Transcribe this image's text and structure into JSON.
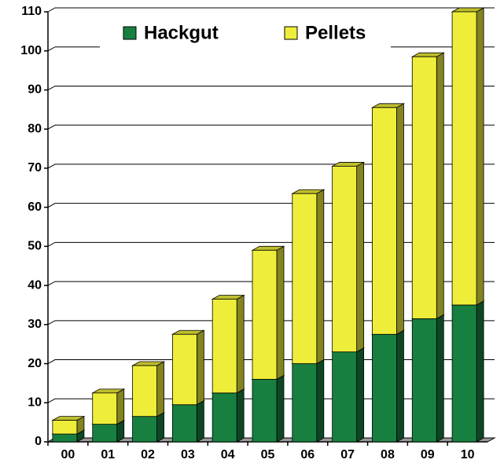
{
  "chart_data": {
    "type": "bar",
    "stacked": true,
    "categories": [
      "00",
      "01",
      "02",
      "03",
      "04",
      "05",
      "06",
      "07",
      "08",
      "09",
      "10"
    ],
    "series": [
      {
        "name": "Hackgut",
        "color": "#178040",
        "values": [
          2,
          4.5,
          6.5,
          9.5,
          12.5,
          16,
          20,
          23,
          27.5,
          31.5,
          35
        ]
      },
      {
        "name": "Pellets",
        "color": "#eeee3a",
        "values": [
          3.5,
          8,
          13,
          18,
          24,
          33,
          43.5,
          47.5,
          58,
          67,
          75
        ]
      }
    ],
    "ylim": [
      0,
      110
    ],
    "yticks": [
      0,
      10,
      20,
      30,
      40,
      50,
      60,
      70,
      80,
      90,
      100,
      110
    ],
    "grid": true,
    "legend": "top"
  }
}
